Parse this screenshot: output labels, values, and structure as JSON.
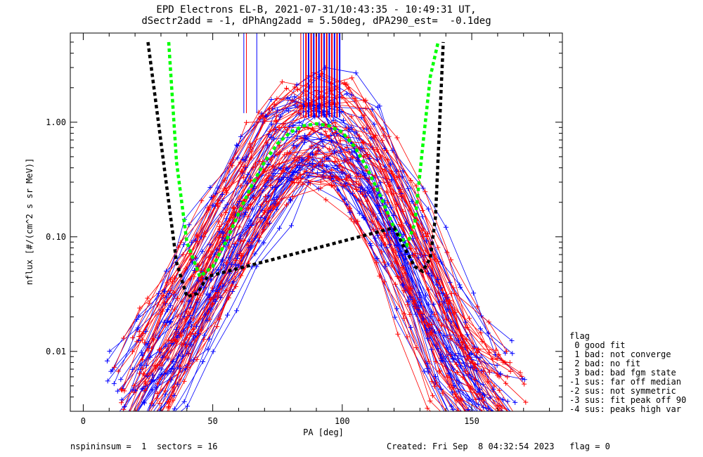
{
  "header": {
    "title_line1": "EPD Electrons EL-B, 2021-07-31/10:43:35 - 10:49:31 UT,",
    "title_line2": "dSectr2add = -1, dPhAng2add = 5.50deg, dPA290_est=  -0.1deg"
  },
  "footer": {
    "left": "nspininsum =  1  sectors = 16",
    "right": "Created: Fri Sep  8 04:32:54 2023   flag = 0"
  },
  "legend": {
    "title": "flag",
    "items": [
      " 0 good fit",
      " 1 bad: not converge",
      " 2 bad: no fit",
      " 3 bad: bad fgm state",
      "-1 sus: far off median",
      "-2 sus: not symmetric",
      "-3 sus: fit peak off 90",
      "-4 sus: peaks high var"
    ]
  },
  "chart_data": {
    "type": "line",
    "xlabel": "PA [deg]",
    "ylabel": "nflux [#/(cm^2 s sr MeV)]",
    "xlim": [
      -5,
      185
    ],
    "ylim": [
      0.003,
      6.0
    ],
    "yscale": "log",
    "x_ticks": [
      0,
      50,
      100,
      150
    ],
    "x_tick_labels": [
      "0",
      "50",
      "100",
      "150"
    ],
    "y_ticks": [
      0.01,
      0.1,
      1.0
    ],
    "y_tick_labels": [
      "0.01",
      "0.10",
      "1.00"
    ],
    "colors": {
      "red": "#ff0000",
      "blue": "#0000ff",
      "green": "#00ff00",
      "black": "#000000"
    },
    "series": [
      {
        "color": "#00ff00",
        "style": "dashed-thick",
        "x": [
          33,
          36,
          40,
          45,
          50,
          55,
          60,
          65,
          70,
          75,
          80,
          85,
          90,
          95,
          100,
          105,
          110,
          115,
          120,
          125,
          128,
          131,
          134,
          137
        ],
        "y": [
          5.0,
          0.45,
          0.09,
          0.045,
          0.055,
          0.09,
          0.16,
          0.28,
          0.45,
          0.65,
          0.82,
          0.93,
          0.97,
          0.93,
          0.82,
          0.6,
          0.38,
          0.22,
          0.12,
          0.085,
          0.13,
          0.6,
          2.5,
          5.0
        ]
      },
      {
        "color": "#000000",
        "style": "dashed-thick",
        "x": [
          25,
          28,
          32,
          36,
          40,
          44,
          48,
          120,
          124,
          128,
          131,
          134,
          136,
          139
        ],
        "y": [
          5.0,
          1.5,
          0.3,
          0.06,
          0.03,
          0.032,
          0.045,
          0.12,
          0.08,
          0.055,
          0.05,
          0.065,
          0.15,
          5.0
        ]
      },
      {
        "color": "#0000ff",
        "style": "lines",
        "name": "",
        "x": [
          20,
          30,
          40,
          50,
          60,
          70,
          80,
          90,
          100,
          110,
          120,
          130,
          140,
          150,
          160
        ],
        "y": [
          0.004,
          0.009,
          0.02,
          0.06,
          0.15,
          0.35,
          0.7,
          0.9,
          0.75,
          0.4,
          0.15,
          0.05,
          0.015,
          0.006,
          0.004
        ]
      },
      {
        "color": "#ff0000",
        "style": "lines",
        "name": "",
        "x": [
          22,
          32,
          42,
          52,
          62,
          72,
          82,
          92,
          102,
          112,
          122,
          132,
          142,
          152,
          162
        ],
        "y": [
          0.005,
          0.012,
          0.03,
          0.08,
          0.2,
          0.45,
          0.75,
          0.85,
          0.7,
          0.35,
          0.12,
          0.035,
          0.01,
          0.005,
          0.003
        ]
      }
    ]
  }
}
